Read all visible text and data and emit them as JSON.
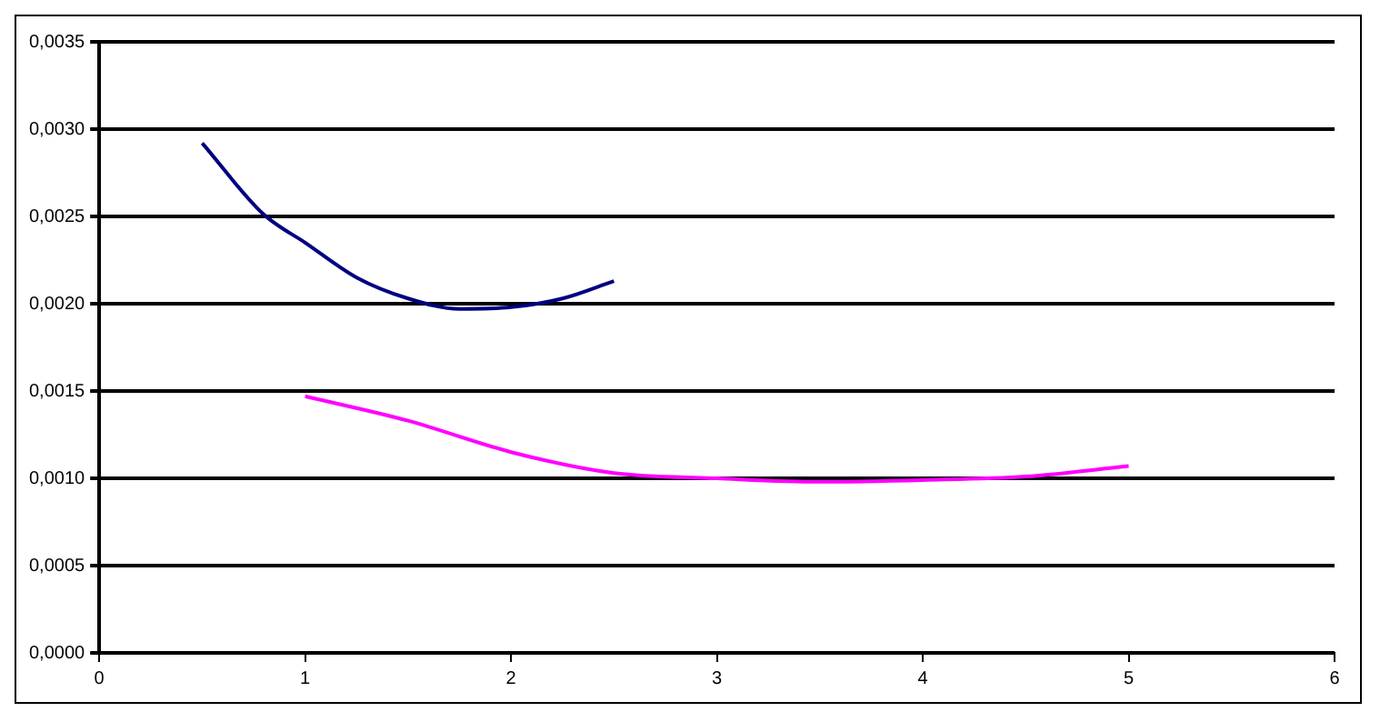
{
  "chart_data": {
    "type": "line",
    "marker": "none",
    "grid": "y",
    "legend": false,
    "xlim": [
      0,
      6
    ],
    "xticks": [
      0,
      1,
      2,
      3,
      4,
      5,
      6
    ],
    "ylim": [
      0,
      0.0035
    ],
    "yticks": [
      {
        "value": 0,
        "label": "0,0000"
      },
      {
        "value": 0.0005,
        "label": "0,0005"
      },
      {
        "value": 0.001,
        "label": "0,0010"
      },
      {
        "value": 0.0015,
        "label": "0,0015"
      },
      {
        "value": 0.002,
        "label": "0,0020"
      },
      {
        "value": 0.0025,
        "label": "0,0025"
      },
      {
        "value": 0.003,
        "label": "0,0030"
      },
      {
        "value": 0.0035,
        "label": "0,0035"
      }
    ],
    "series": [
      {
        "color": "#000080",
        "x": [
          0.5,
          0.8,
          1,
          1.25,
          1.5,
          1.75,
          2,
          2.25,
          2.5
        ],
        "values": [
          0.00292,
          0.00251,
          0.00235,
          0.00215,
          0.00203,
          0.00197,
          0.00198,
          0.00203,
          0.00213
        ]
      },
      {
        "color": "#ff00ff",
        "x": [
          1,
          1.5,
          2,
          2.5,
          3,
          3.5,
          4,
          4.5,
          5
        ],
        "values": [
          0.00147,
          0.00133,
          0.00115,
          0.00103,
          0.001,
          0.00098,
          0.00099,
          0.00101,
          0.00107
        ]
      }
    ]
  }
}
